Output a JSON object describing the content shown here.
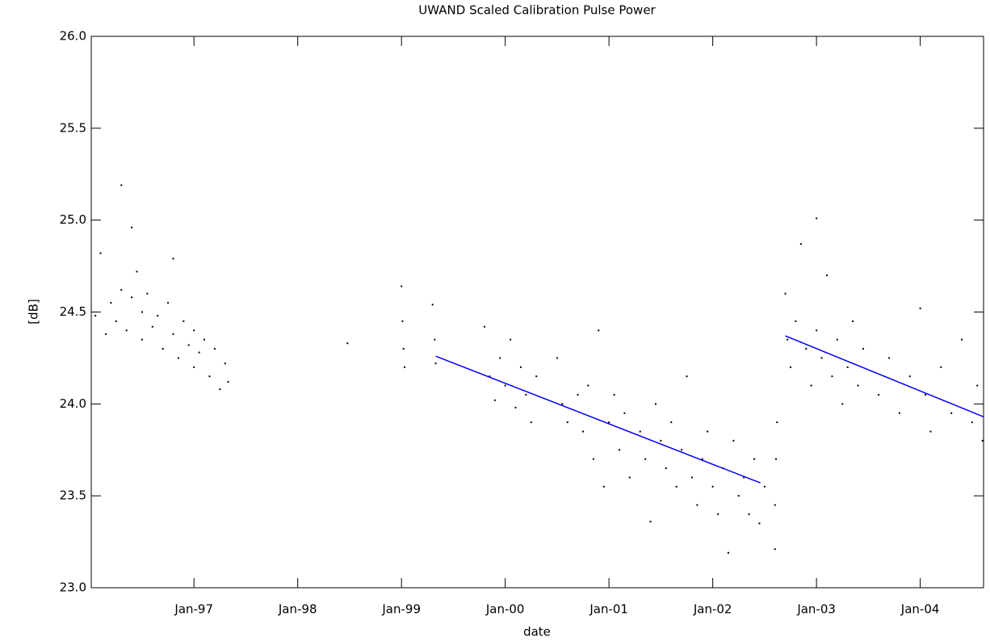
{
  "chart_data": {
    "type": "scatter",
    "title": "UWAND Scaled Calibration Pulse Power",
    "x_label": "date",
    "y_label": "[dB]",
    "xlim": [
      1996.01,
      2004.61
    ],
    "ylim": [
      23.0,
      26.0
    ],
    "xticks": [
      {
        "value": 1997,
        "label": "Jan-97"
      },
      {
        "value": 1998,
        "label": "Jan-98"
      },
      {
        "value": 1999,
        "label": "Jan-99"
      },
      {
        "value": 2000,
        "label": "Jan-00"
      },
      {
        "value": 2001,
        "label": "Jan-01"
      },
      {
        "value": 2002,
        "label": "Jan-02"
      },
      {
        "value": 2003,
        "label": "Jan-03"
      },
      {
        "value": 2004,
        "label": "Jan-04"
      }
    ],
    "yticks": [
      {
        "value": 23,
        "label": "23.0"
      },
      {
        "value": 23.5,
        "label": "23.5"
      },
      {
        "value": 24,
        "label": "24.0"
      },
      {
        "value": 24.5,
        "label": "24.5"
      },
      {
        "value": 25,
        "label": "25.0"
      },
      {
        "value": 25.5,
        "label": "25.5"
      },
      {
        "value": 26,
        "label": "26.0"
      }
    ],
    "grid": false,
    "series": [
      {
        "style": "markers",
        "color": "#000000",
        "x": [
          1996.05,
          1996.1,
          1996.15,
          1996.2,
          1996.25,
          1996.3,
          1996.3,
          1996.35,
          1996.4,
          1996.4,
          1996.45,
          1996.5,
          1996.5,
          1996.55,
          1996.6,
          1996.65,
          1996.7,
          1996.75,
          1996.8,
          1996.8,
          1996.85,
          1996.9,
          1996.95,
          1997.0,
          1997.0,
          1997.05,
          1997.1,
          1997.15,
          1997.2,
          1997.25,
          1997.3,
          1997.33,
          1998.48,
          1999.0,
          1999.01,
          1999.02,
          1999.03,
          1999.3,
          1999.32,
          1999.33,
          1999.8,
          1999.85,
          1999.9,
          1999.95,
          2000.0,
          2000.05,
          2000.1,
          2000.15,
          2000.2,
          2000.25,
          2000.3,
          2000.5,
          2000.55,
          2000.6,
          2000.7,
          2000.75,
          2000.8,
          2000.85,
          2000.9,
          2000.95,
          2001.0,
          2001.05,
          2001.1,
          2001.15,
          2001.2,
          2001.3,
          2001.35,
          2001.4,
          2001.45,
          2001.5,
          2001.55,
          2001.6,
          2001.65,
          2001.7,
          2001.75,
          2001.8,
          2001.85,
          2001.9,
          2001.95,
          2002.0,
          2002.05,
          2002.1,
          2002.15,
          2002.2,
          2002.25,
          2002.3,
          2002.35,
          2002.4,
          2002.45,
          2002.5,
          2002.6,
          2002.6,
          2002.61,
          2002.62,
          2002.7,
          2002.72,
          2002.75,
          2002.8,
          2002.85,
          2002.9,
          2002.95,
          2003.0,
          2003.0,
          2003.05,
          2003.1,
          2003.15,
          2003.2,
          2003.25,
          2003.3,
          2003.35,
          2003.4,
          2003.45,
          2003.6,
          2003.7,
          2003.8,
          2003.9,
          2004.0,
          2004.05,
          2004.1,
          2004.2,
          2004.3,
          2004.4,
          2004.5,
          2004.55,
          2004.6
        ],
        "values": [
          24.48,
          24.82,
          24.38,
          24.55,
          24.45,
          25.19,
          24.62,
          24.4,
          24.96,
          24.58,
          24.72,
          24.35,
          24.5,
          24.6,
          24.42,
          24.48,
          24.3,
          24.55,
          24.79,
          24.38,
          24.25,
          24.45,
          24.32,
          24.2,
          24.4,
          24.28,
          24.35,
          24.15,
          24.3,
          24.08,
          24.22,
          24.12,
          24.33,
          24.64,
          24.45,
          24.3,
          24.2,
          24.54,
          24.35,
          24.22,
          24.42,
          24.15,
          24.02,
          24.25,
          24.1,
          24.35,
          23.98,
          24.2,
          24.05,
          23.9,
          24.15,
          24.25,
          24.0,
          23.9,
          24.05,
          23.85,
          24.1,
          23.7,
          24.4,
          23.55,
          23.9,
          24.05,
          23.75,
          23.95,
          23.6,
          23.85,
          23.7,
          23.36,
          24.0,
          23.8,
          23.65,
          23.9,
          23.55,
          23.75,
          24.15,
          23.6,
          23.45,
          23.7,
          23.85,
          23.55,
          23.4,
          23.65,
          23.19,
          23.8,
          23.5,
          23.6,
          23.4,
          23.7,
          23.35,
          23.55,
          23.21,
          23.45,
          23.7,
          23.9,
          24.6,
          24.35,
          24.2,
          24.45,
          24.87,
          24.3,
          24.1,
          25.01,
          24.4,
          24.25,
          24.7,
          24.15,
          24.35,
          24.0,
          24.2,
          24.45,
          24.1,
          24.3,
          24.05,
          24.25,
          23.95,
          24.15,
          24.52,
          24.05,
          23.85,
          24.2,
          23.95,
          24.35,
          23.9,
          24.1,
          23.8
        ]
      },
      {
        "style": "line",
        "color": "#0000ff",
        "x": [
          1999.33,
          2002.46
        ],
        "values": [
          24.26,
          23.57
        ]
      },
      {
        "style": "line",
        "color": "#0000ff",
        "x": [
          2002.7,
          2004.61
        ],
        "values": [
          24.37,
          23.93
        ]
      }
    ]
  }
}
